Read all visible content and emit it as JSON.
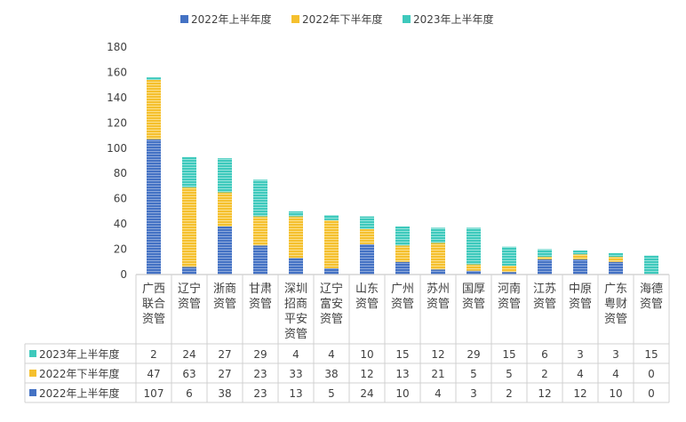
{
  "chart_data": {
    "type": "bar",
    "stacked": true,
    "categories": [
      [
        "广西",
        "联合",
        "资管"
      ],
      [
        "辽宁",
        "资管"
      ],
      [
        "浙商",
        "资管"
      ],
      [
        "甘肃",
        "资管"
      ],
      [
        "深圳",
        "招商",
        "平安",
        "资管"
      ],
      [
        "辽宁",
        "富安",
        "资管"
      ],
      [
        "山东",
        "资管"
      ],
      [
        "广州",
        "资管"
      ],
      [
        "苏州",
        "资管"
      ],
      [
        "国厚",
        "资管"
      ],
      [
        "河南",
        "资管"
      ],
      [
        "江苏",
        "资管"
      ],
      [
        "中原",
        "资管"
      ],
      [
        "广东",
        "粤财",
        "资管"
      ],
      [
        "海德",
        "资管"
      ]
    ],
    "series": [
      {
        "name": "2022年上半年度",
        "color": "#4472C4",
        "values": [
          107,
          6,
          38,
          23,
          13,
          5,
          24,
          10,
          4,
          3,
          2,
          12,
          12,
          10,
          0
        ]
      },
      {
        "name": "2022年下半年度",
        "color": "#F5C02E",
        "values": [
          47,
          63,
          27,
          23,
          33,
          38,
          12,
          13,
          21,
          5,
          5,
          2,
          4,
          4,
          0
        ]
      },
      {
        "name": "2023年上半年度",
        "color": "#3EC9BC",
        "values": [
          2,
          24,
          27,
          29,
          4,
          4,
          10,
          15,
          12,
          29,
          15,
          6,
          3,
          3,
          15
        ]
      }
    ],
    "ylim": [
      0,
      180
    ],
    "yticks": [
      0,
      20,
      40,
      60,
      80,
      100,
      120,
      140,
      160,
      180
    ],
    "legend_position": "top",
    "data_table": true,
    "grid": false
  }
}
